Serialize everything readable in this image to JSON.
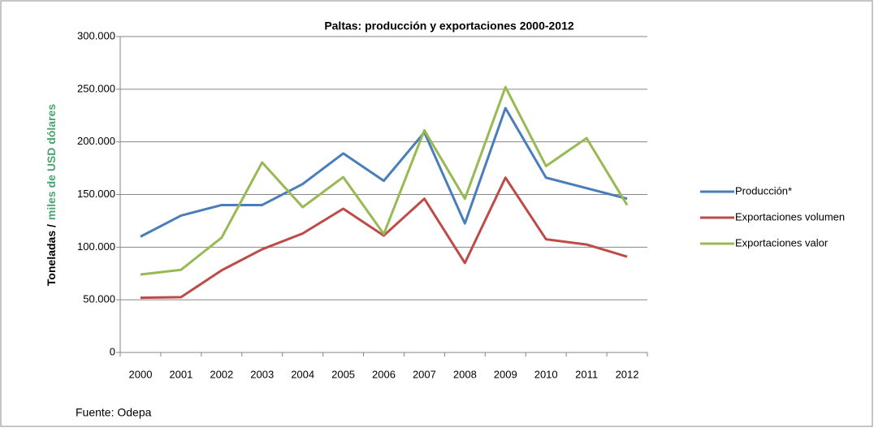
{
  "chart_data": {
    "type": "line",
    "title": "Paltas: producción y exportaciones 2000-2012",
    "y_label": "Toneladas /",
    "y_label_2": "miles de USD dólares",
    "y_label_2_color": "#4aa56e",
    "note": "Fuente: Odepa",
    "categories": [
      "2000",
      "2001",
      "2002",
      "2003",
      "2004",
      "2005",
      "2006",
      "2007",
      "2008",
      "2009",
      "2010",
      "2011",
      "2012"
    ],
    "series": [
      {
        "name": "Producción*",
        "color": "#4a7ebb",
        "values": [
          110000,
          130000,
          140000,
          140000,
          160000,
          189000,
          163000,
          209000,
          122500,
          232000,
          166000,
          156000,
          146000
        ]
      },
      {
        "name": "Exportaciones volumen",
        "color": "#be4b48",
        "values": [
          52000,
          52500,
          78000,
          98000,
          113000,
          136500,
          111000,
          146000,
          85000,
          166000,
          107500,
          102500,
          91000
        ]
      },
      {
        "name": "Exportaciones valor",
        "color": "#98b954",
        "values": [
          74000,
          78500,
          109000,
          180500,
          138000,
          166500,
          112500,
          211000,
          146000,
          252000,
          177000,
          203500,
          140000
        ]
      }
    ],
    "ylim": [
      0,
      300000
    ],
    "yticks": [
      0,
      {
        "value": 50000,
        "label": "50.000"
      },
      {
        "value": 100000,
        "label": "100.000"
      },
      {
        "value": 150000,
        "label": "150.000"
      },
      {
        "value": 200000,
        "label": "200.000"
      },
      {
        "value": 250000,
        "label": "250.000"
      },
      {
        "value": 300000,
        "label": "300.000"
      }
    ],
    "grid": true,
    "legend": "right"
  }
}
